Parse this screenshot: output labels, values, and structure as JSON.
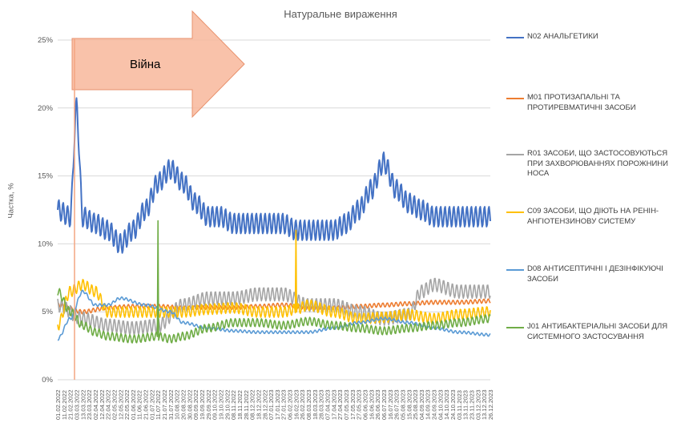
{
  "chart_data": {
    "type": "line",
    "title": "Натуральне вираження",
    "ylabel": "Частка, %",
    "xlabel": "",
    "ylim": [
      0,
      25
    ],
    "y_ticks": [
      "0%",
      "5%",
      "10%",
      "15%",
      "20%",
      "25%"
    ],
    "y_tick_values": [
      0,
      5,
      10,
      15,
      20,
      25
    ],
    "grid": true,
    "legend_position": "right",
    "annotation": {
      "text": "Війна",
      "marker_date": "24.02.2022",
      "arrow_color": "#f4a582"
    },
    "x_tick_labels": [
      "01.02.2022",
      "11.02.2022",
      "21.02.2022",
      "03.03.2022",
      "13.03.2022",
      "23.03.2022",
      "02.04.2022",
      "12.04.2022",
      "22.04.2022",
      "02.05.2022",
      "12.05.2022",
      "22.05.2022",
      "01.06.2022",
      "11.06.2022",
      "21.06.2022",
      "01.07.2022",
      "11.07.2022",
      "21.07.2022",
      "31.07.2022",
      "10.08.2022",
      "20.08.2022",
      "30.08.2022",
      "09.09.2022",
      "19.09.2022",
      "29.09.2022",
      "09.10.2022",
      "19.10.2022",
      "29.10.2022",
      "08.11.2022",
      "18.11.2022",
      "28.11.2022",
      "08.12.2022",
      "18.12.2022",
      "28.12.2022",
      "07.01.2023",
      "17.01.2023",
      "27.01.2023",
      "06.02.2023",
      "16.02.2023",
      "26.02.2023",
      "08.03.2023",
      "18.03.2023",
      "28.03.2023",
      "07.04.2023",
      "17.04.2023",
      "27.04.2023",
      "07.05.2023",
      "17.05.2023",
      "27.05.2023",
      "06.06.2023",
      "16.06.2023",
      "26.06.2023",
      "06.07.2023",
      "16.07.2023",
      "26.07.2023",
      "05.08.2023",
      "15.08.2023",
      "25.08.2023",
      "04.09.2023",
      "14.09.2023",
      "24.09.2023",
      "04.10.2023",
      "14.10.2023",
      "24.10.2023",
      "03.11.2023",
      "13.11.2023",
      "23.11.2023",
      "03.12.2023",
      "13.12.2023",
      "26.12.2023"
    ],
    "series": [
      {
        "name": "N02 АНАЛЬГЕТИКИ",
        "color": "#4472c4",
        "anchors": [
          [
            0,
            12.5
          ],
          [
            2,
            12.0
          ],
          [
            3,
            20.0
          ],
          [
            4,
            12.0
          ],
          [
            6,
            11.5
          ],
          [
            8,
            11.0
          ],
          [
            10,
            10.0
          ],
          [
            12,
            11.0
          ],
          [
            14,
            12.5
          ],
          [
            16,
            14.5
          ],
          [
            18,
            15.5
          ],
          [
            20,
            14.5
          ],
          [
            22,
            13.0
          ],
          [
            24,
            12.0
          ],
          [
            26,
            12.0
          ],
          [
            28,
            11.5
          ],
          [
            30,
            11.5
          ],
          [
            32,
            11.5
          ],
          [
            34,
            11.5
          ],
          [
            36,
            11.5
          ],
          [
            38,
            11.0
          ],
          [
            40,
            11.0
          ],
          [
            42,
            11.0
          ],
          [
            44,
            11.0
          ],
          [
            46,
            11.5
          ],
          [
            48,
            12.5
          ],
          [
            50,
            14.0
          ],
          [
            52,
            16.0
          ],
          [
            54,
            14.0
          ],
          [
            56,
            13.0
          ],
          [
            58,
            12.5
          ],
          [
            60,
            12.0
          ],
          [
            62,
            12.0
          ],
          [
            64,
            12.0
          ],
          [
            66,
            12.0
          ],
          [
            69,
            12.0
          ]
        ],
        "weekly_amplitude": 1.5
      },
      {
        "name": "M01 ПРОТИЗАПАЛЬНІ ТА ПРОТИРЕВМАТИЧНІ ЗАСОБИ",
        "color": "#ed7d31",
        "anchors": [
          [
            0,
            5.5
          ],
          [
            4,
            5.0
          ],
          [
            8,
            5.3
          ],
          [
            12,
            5.4
          ],
          [
            16,
            5.4
          ],
          [
            20,
            5.3
          ],
          [
            24,
            5.3
          ],
          [
            28,
            5.3
          ],
          [
            32,
            5.4
          ],
          [
            36,
            5.5
          ],
          [
            40,
            5.3
          ],
          [
            44,
            5.3
          ],
          [
            48,
            5.4
          ],
          [
            52,
            5.5
          ],
          [
            56,
            5.6
          ],
          [
            60,
            5.7
          ],
          [
            64,
            5.7
          ],
          [
            69,
            5.8
          ]
        ],
        "weekly_amplitude": 0.3
      },
      {
        "name": "R01 ЗАСОБИ, ЩО ЗАСТОСОВУЮТЬСЯ ПРИ ЗАХВОРЮВАННЯХ ПОРОЖНИНИ НОСА",
        "color": "#a5a5a5",
        "anchors": [
          [
            0,
            5.5
          ],
          [
            4,
            4.5
          ],
          [
            8,
            4.0
          ],
          [
            12,
            3.8
          ],
          [
            16,
            4.0
          ],
          [
            20,
            5.5
          ],
          [
            24,
            6.0
          ],
          [
            28,
            6.0
          ],
          [
            32,
            6.3
          ],
          [
            36,
            6.3
          ],
          [
            40,
            5.5
          ],
          [
            44,
            5.5
          ],
          [
            48,
            5.0
          ],
          [
            52,
            4.5
          ],
          [
            56,
            4.8
          ],
          [
            58,
            6.5
          ],
          [
            60,
            7.0
          ],
          [
            64,
            6.5
          ],
          [
            69,
            6.5
          ]
        ],
        "weekly_amplitude": 1.0
      },
      {
        "name": "C09 ЗАСОБИ, ЩО ДІЮТЬ НА РЕНІН-АНГІОТЕНЗИНОВУ СИСТЕМУ",
        "color": "#ffc000",
        "anchors": [
          [
            0,
            4.0
          ],
          [
            2,
            6.5
          ],
          [
            4,
            7.0
          ],
          [
            6,
            6.5
          ],
          [
            8,
            5.0
          ],
          [
            12,
            5.0
          ],
          [
            16,
            5.0
          ],
          [
            20,
            5.0
          ],
          [
            24,
            5.2
          ],
          [
            28,
            5.3
          ],
          [
            32,
            5.0
          ],
          [
            36,
            5.0
          ],
          [
            38,
            5.2
          ],
          [
            40,
            5.5
          ],
          [
            44,
            5.0
          ],
          [
            48,
            4.5
          ],
          [
            52,
            4.6
          ],
          [
            56,
            4.8
          ],
          [
            60,
            4.5
          ],
          [
            64,
            4.8
          ],
          [
            69,
            5.0
          ]
        ],
        "weekly_amplitude": 0.8,
        "spikes": [
          [
            38,
            11.0
          ]
        ]
      },
      {
        "name": "D08 АНТИСЕПТИЧНІ І ДЕЗІНФІКУЮЧІ ЗАСОБИ",
        "color": "#5b9bd5",
        "anchors": [
          [
            0,
            3.0
          ],
          [
            2,
            4.5
          ],
          [
            4,
            6.5
          ],
          [
            6,
            5.5
          ],
          [
            8,
            5.5
          ],
          [
            10,
            6.0
          ],
          [
            14,
            5.5
          ],
          [
            18,
            5.0
          ],
          [
            20,
            4.2
          ],
          [
            24,
            3.8
          ],
          [
            28,
            3.6
          ],
          [
            32,
            3.5
          ],
          [
            36,
            3.5
          ],
          [
            40,
            3.5
          ],
          [
            44,
            3.8
          ],
          [
            48,
            4.2
          ],
          [
            52,
            4.5
          ],
          [
            56,
            4.2
          ],
          [
            60,
            3.8
          ],
          [
            64,
            3.5
          ],
          [
            69,
            3.3
          ]
        ],
        "weekly_amplitude": 0.2
      },
      {
        "name": "J01 АНТИБАКТЕРІАЛЬНІ ЗАСОБИ ДЛЯ СИСТЕМНОГО ЗАСТОСУВАННЯ",
        "color": "#70ad47",
        "anchors": [
          [
            0,
            6.5
          ],
          [
            2,
            5.0
          ],
          [
            4,
            4.0
          ],
          [
            6,
            3.5
          ],
          [
            8,
            3.2
          ],
          [
            12,
            3.0
          ],
          [
            16,
            3.2
          ],
          [
            18,
            3.0
          ],
          [
            20,
            3.2
          ],
          [
            24,
            3.8
          ],
          [
            28,
            4.2
          ],
          [
            32,
            4.2
          ],
          [
            36,
            4.0
          ],
          [
            40,
            4.3
          ],
          [
            44,
            4.0
          ],
          [
            48,
            3.8
          ],
          [
            52,
            3.6
          ],
          [
            56,
            3.8
          ],
          [
            60,
            4.0
          ],
          [
            64,
            4.2
          ],
          [
            69,
            4.5
          ]
        ],
        "weekly_amplitude": 0.6,
        "spikes": [
          [
            16,
            11.7
          ]
        ]
      }
    ]
  }
}
